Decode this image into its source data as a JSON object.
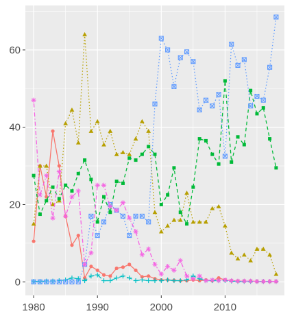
{
  "chart_data": {
    "type": "line",
    "title": "",
    "xlabel": "",
    "ylabel": "",
    "xlim": [
      1978.7,
      2019.3
    ],
    "ylim": [
      -3.5,
      71.5
    ],
    "x_ticks": [
      1980,
      1990,
      2000,
      2010
    ],
    "y_ticks": [
      0,
      20,
      40,
      60
    ],
    "x_tick_labels": [
      "1980",
      "1990",
      "2000",
      "2010"
    ],
    "y_tick_labels": [
      "0",
      "20",
      "40",
      "60"
    ],
    "grid": true,
    "legend": "none",
    "series": [
      {
        "color": "#f8766d",
        "line_style": "solid",
        "marker": "dot",
        "points": [
          [
            1980,
            10.5
          ],
          [
            1981,
            30
          ],
          [
            1982,
            22
          ],
          [
            1983,
            39
          ],
          [
            1984,
            30
          ],
          [
            1985,
            17
          ],
          [
            1986,
            9.5
          ],
          [
            1987,
            12
          ],
          [
            1988,
            1
          ],
          [
            1989,
            4
          ],
          [
            1990,
            3
          ],
          [
            1991,
            1.8
          ],
          [
            1992,
            1.5
          ],
          [
            1993,
            3.5
          ],
          [
            1994,
            3.8
          ],
          [
            1995,
            4.5
          ],
          [
            1996,
            3
          ],
          [
            1997,
            1.3
          ],
          [
            1998,
            1.5
          ],
          [
            1999,
            0.8
          ],
          [
            2000,
            0.5
          ],
          [
            2001,
            0.5
          ],
          [
            2002,
            0.4
          ],
          [
            2003,
            0.3
          ],
          [
            2004,
            0.3
          ],
          [
            2005,
            0.5
          ],
          [
            2006,
            0.3
          ],
          [
            2007,
            0.5
          ],
          [
            2008,
            0.3
          ],
          [
            2009,
            1
          ],
          [
            2010,
            0.5
          ],
          [
            2011,
            0.3
          ],
          [
            2012,
            0.2
          ],
          [
            2013,
            0.2
          ],
          [
            2014,
            0.2
          ],
          [
            2015,
            0.1
          ],
          [
            2016,
            0.1
          ],
          [
            2017,
            0.1
          ],
          [
            2018,
            0.1
          ]
        ]
      },
      {
        "color": "#b79f00",
        "line_style": "dotted",
        "marker": "triangle",
        "points": [
          [
            1980,
            15
          ],
          [
            1981,
            30
          ],
          [
            1982,
            30
          ],
          [
            1983,
            20
          ],
          [
            1984,
            21
          ],
          [
            1985,
            41
          ],
          [
            1986,
            44.5
          ],
          [
            1987,
            36
          ],
          [
            1988,
            64
          ],
          [
            1989,
            39
          ],
          [
            1990,
            41.5
          ],
          [
            1991,
            35.5
          ],
          [
            1992,
            39
          ],
          [
            1993,
            33
          ],
          [
            1994,
            33.5
          ],
          [
            1995,
            33
          ],
          [
            1996,
            37
          ],
          [
            1997,
            41.5
          ],
          [
            1998,
            39
          ],
          [
            1999,
            18
          ],
          [
            2000,
            13
          ],
          [
            2001,
            14.5
          ],
          [
            2002,
            16
          ],
          [
            2003,
            16
          ],
          [
            2004,
            23
          ],
          [
            2005,
            15.5
          ],
          [
            2006,
            15.5
          ],
          [
            2007,
            15.5
          ],
          [
            2008,
            19
          ],
          [
            2009,
            19.5
          ],
          [
            2010,
            14.5
          ],
          [
            2011,
            7.5
          ],
          [
            2012,
            6
          ],
          [
            2013,
            7
          ],
          [
            2014,
            5.5
          ],
          [
            2015,
            8.5
          ],
          [
            2016,
            8.5
          ],
          [
            2017,
            7
          ],
          [
            2018,
            2
          ]
        ]
      },
      {
        "color": "#00ba38",
        "line_style": "dashed",
        "marker": "square",
        "points": [
          [
            1980,
            27.5
          ],
          [
            1981,
            17.5
          ],
          [
            1982,
            21
          ],
          [
            1983,
            24.5
          ],
          [
            1984,
            21.5
          ],
          [
            1985,
            25
          ],
          [
            1986,
            23.5
          ],
          [
            1987,
            28
          ],
          [
            1988,
            31.5
          ],
          [
            1989,
            26.5
          ],
          [
            1990,
            15.5
          ],
          [
            1991,
            22
          ],
          [
            1992,
            18
          ],
          [
            1993,
            26
          ],
          [
            1994,
            25.5
          ],
          [
            1995,
            32
          ],
          [
            1996,
            31.5
          ],
          [
            1997,
            33
          ],
          [
            1998,
            35
          ],
          [
            1999,
            33
          ],
          [
            2000,
            20
          ],
          [
            2001,
            22.5
          ],
          [
            2002,
            29.5
          ],
          [
            2003,
            18
          ],
          [
            2004,
            15
          ],
          [
            2005,
            24.5
          ],
          [
            2006,
            37
          ],
          [
            2007,
            36.5
          ],
          [
            2008,
            33
          ],
          [
            2009,
            30.5
          ],
          [
            2010,
            52
          ],
          [
            2011,
            31
          ],
          [
            2012,
            37.5
          ],
          [
            2013,
            35.5
          ],
          [
            2014,
            49.5
          ],
          [
            2015,
            43.5
          ],
          [
            2016,
            45
          ],
          [
            2017,
            37
          ],
          [
            2018,
            29.5
          ]
        ]
      },
      {
        "color": "#00bfc4",
        "line_style": "longdash",
        "marker": "plus",
        "points": [
          [
            1980,
            0.1
          ],
          [
            1981,
            0.1
          ],
          [
            1982,
            0.2
          ],
          [
            1983,
            0.2
          ],
          [
            1984,
            0.3
          ],
          [
            1985,
            0.5
          ],
          [
            1986,
            1
          ],
          [
            1987,
            0.8
          ],
          [
            1988,
            0.3
          ],
          [
            1989,
            1.5
          ],
          [
            1990,
            1.8
          ],
          [
            1991,
            0.3
          ],
          [
            1992,
            0.3
          ],
          [
            1993,
            1
          ],
          [
            1994,
            1.5
          ],
          [
            1995,
            1
          ],
          [
            1996,
            0.3
          ],
          [
            1997,
            0.5
          ],
          [
            1998,
            0.3
          ],
          [
            1999,
            0.3
          ],
          [
            2000,
            0.3
          ],
          [
            2001,
            0.5
          ],
          [
            2002,
            0.3
          ],
          [
            2003,
            0.3
          ],
          [
            2004,
            0.5
          ],
          [
            2005,
            1.5
          ],
          [
            2006,
            0.8
          ],
          [
            2007,
            0.3
          ],
          [
            2008,
            0.3
          ],
          [
            2009,
            0.3
          ],
          [
            2010,
            0.3
          ],
          [
            2011,
            0.2
          ],
          [
            2012,
            0.1
          ],
          [
            2013,
            0.1
          ],
          [
            2014,
            0.1
          ],
          [
            2015,
            0.1
          ],
          [
            2016,
            0.1
          ],
          [
            2017,
            0.1
          ],
          [
            2018,
            0.1
          ]
        ]
      },
      {
        "color": "#619cff",
        "line_style": "dotted",
        "marker": "boxed-x",
        "points": [
          [
            1980,
            0
          ],
          [
            1981,
            0
          ],
          [
            1982,
            0
          ],
          [
            1983,
            0
          ],
          [
            1984,
            0
          ],
          [
            1985,
            0
          ],
          [
            1986,
            0
          ],
          [
            1987,
            0
          ],
          [
            1988,
            4.5
          ],
          [
            1989,
            17
          ],
          [
            1990,
            12
          ],
          [
            1991,
            15.5
          ],
          [
            1992,
            20
          ],
          [
            1993,
            18.5
          ],
          [
            1994,
            17
          ],
          [
            1995,
            12
          ],
          [
            1996,
            17
          ],
          [
            1997,
            17
          ],
          [
            1998,
            15.5
          ],
          [
            1999,
            46
          ],
          [
            2000,
            63
          ],
          [
            2001,
            60
          ],
          [
            2002,
            50.5
          ],
          [
            2003,
            58
          ],
          [
            2004,
            59.5
          ],
          [
            2005,
            57
          ],
          [
            2006,
            44.5
          ],
          [
            2007,
            47
          ],
          [
            2008,
            45.5
          ],
          [
            2009,
            48.5
          ],
          [
            2010,
            32.5
          ],
          [
            2011,
            61.5
          ],
          [
            2012,
            56
          ],
          [
            2013,
            57.5
          ],
          [
            2014,
            45.5
          ],
          [
            2015,
            48
          ],
          [
            2016,
            47
          ],
          [
            2017,
            55.5
          ],
          [
            2018,
            68.5
          ]
        ]
      },
      {
        "color": "#f564e3",
        "line_style": "dotdash",
        "marker": "asterisk",
        "points": [
          [
            1980,
            47
          ],
          [
            1981,
            22.5
          ],
          [
            1982,
            27.5
          ],
          [
            1983,
            16.5
          ],
          [
            1984,
            28.5
          ],
          [
            1985,
            17
          ],
          [
            1986,
            22
          ],
          [
            1987,
            23.5
          ],
          [
            1988,
            4.5
          ],
          [
            1989,
            7.5
          ],
          [
            1990,
            25
          ],
          [
            1991,
            25
          ],
          [
            1992,
            19.5
          ],
          [
            1993,
            18.5
          ],
          [
            1994,
            20.5
          ],
          [
            1995,
            16.5
          ],
          [
            1996,
            13
          ],
          [
            1997,
            7
          ],
          [
            1998,
            8.5
          ],
          [
            1999,
            4.5
          ],
          [
            2000,
            2
          ],
          [
            2001,
            4
          ],
          [
            2002,
            3
          ],
          [
            2003,
            5.5
          ],
          [
            2004,
            1.5
          ],
          [
            2005,
            0.8
          ],
          [
            2006,
            1.5
          ],
          [
            2007,
            0.3
          ],
          [
            2008,
            0.5
          ],
          [
            2009,
            0.3
          ],
          [
            2010,
            0.5
          ],
          [
            2011,
            0.3
          ],
          [
            2012,
            0.2
          ],
          [
            2013,
            0.2
          ],
          [
            2014,
            0.2
          ],
          [
            2015,
            0.1
          ],
          [
            2016,
            0.1
          ],
          [
            2017,
            0.1
          ],
          [
            2018,
            0.1
          ]
        ]
      }
    ]
  }
}
